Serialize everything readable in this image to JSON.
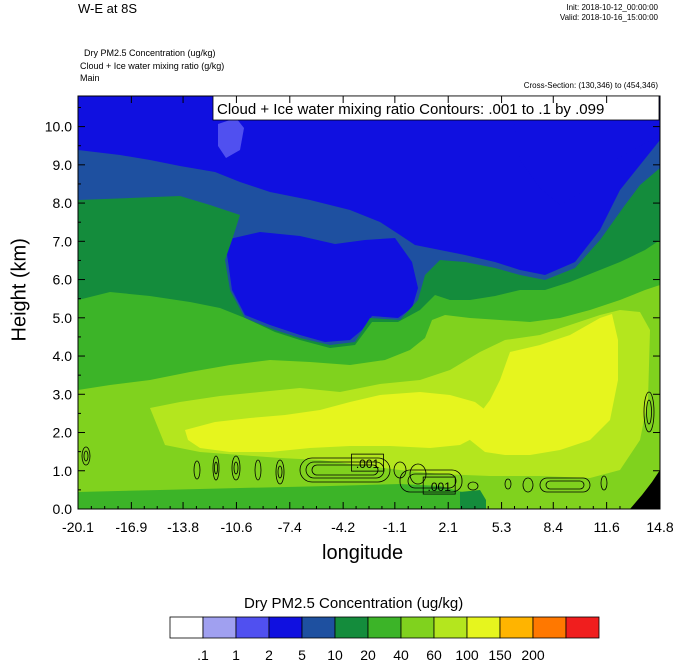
{
  "header": {
    "title": "W-E at 8S",
    "init": "Init: 2018-10-12_00:00:00",
    "valid": "Valid: 2018-10-16_15:00:00"
  },
  "fields": {
    "line1": "Dry PM2.5 Concentration   (ug/kg)",
    "line2": "Cloud + Ice water mixing ratio   (g/kg)",
    "line3": "Main"
  },
  "cross_section": "Cross-Section: (130,346) to (454,346)",
  "contour_info": "Cloud + Ice water mixing ratio Contours: .001 to .1 by .099",
  "colors": {
    "white": "#ffffff",
    "lavender": "#a0a0f0",
    "lightblue": "#5050f0",
    "blue": "#1010e0",
    "darkblue": "#1e50a0",
    "teal": "#148c3c",
    "green": "#3cb428",
    "lightgreen": "#80d21e",
    "yellowgreen": "#b4e61e",
    "yellow": "#e6f51e",
    "orange": "#ffb400",
    "darkorange": "#ff7800",
    "red": "#f01e1e"
  },
  "chart_data": {
    "type": "heatmap",
    "title": "W-E at 8S",
    "xlabel": "longitude",
    "ylabel": "Height (km)",
    "x_ticks": [
      "-20.1",
      "-16.9",
      "-13.8",
      "-10.6",
      "-7.4",
      "-4.2",
      "-1.1",
      "2.1",
      "5.3",
      "8.4",
      "11.6",
      "14.8"
    ],
    "y_ticks": [
      "0.0",
      "1.0",
      "2.0",
      "3.0",
      "4.0",
      "5.0",
      "6.0",
      "7.0",
      "8.0",
      "9.0",
      "10.0"
    ],
    "xlim": [
      -20.1,
      14.8
    ],
    "ylim": [
      0,
      10.8
    ],
    "colorbar": {
      "title": "Dry PM2.5 Concentration  (ug/kg)",
      "levels": [
        ".1",
        "1",
        "2",
        "5",
        "10",
        "20",
        "40",
        "60",
        "100",
        "150",
        "200"
      ],
      "colors": [
        "#ffffff",
        "#a0a0f0",
        "#5050f0",
        "#1010e0",
        "#1e50a0",
        "#148c3c",
        "#3cb428",
        "#80d21e",
        "#b4e61e",
        "#e6f51e",
        "#ffb400",
        "#ff7800",
        "#f01e1e"
      ]
    },
    "contour_labels": [
      {
        "text": ".001",
        "lon": -2.8,
        "height": 1.2
      },
      {
        "text": ".001",
        "lon": 1.5,
        "height": 0.6
      }
    ]
  }
}
